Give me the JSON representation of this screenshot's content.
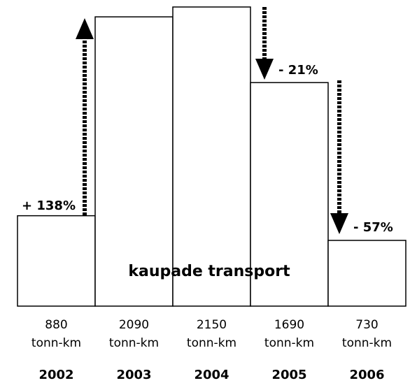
{
  "chart_data": {
    "type": "bar",
    "categories": [
      "2002",
      "2003",
      "2004",
      "2005",
      "2006"
    ],
    "values": [
      880,
      2090,
      2150,
      1690,
      730
    ],
    "unit": "tonn-km",
    "color": "#ffffff",
    "ylim": [
      330,
      2150
    ],
    "overlay_text": "kaupade transport",
    "annotations": [
      "+ 138%",
      "- 21%",
      "- 57%"
    ]
  }
}
